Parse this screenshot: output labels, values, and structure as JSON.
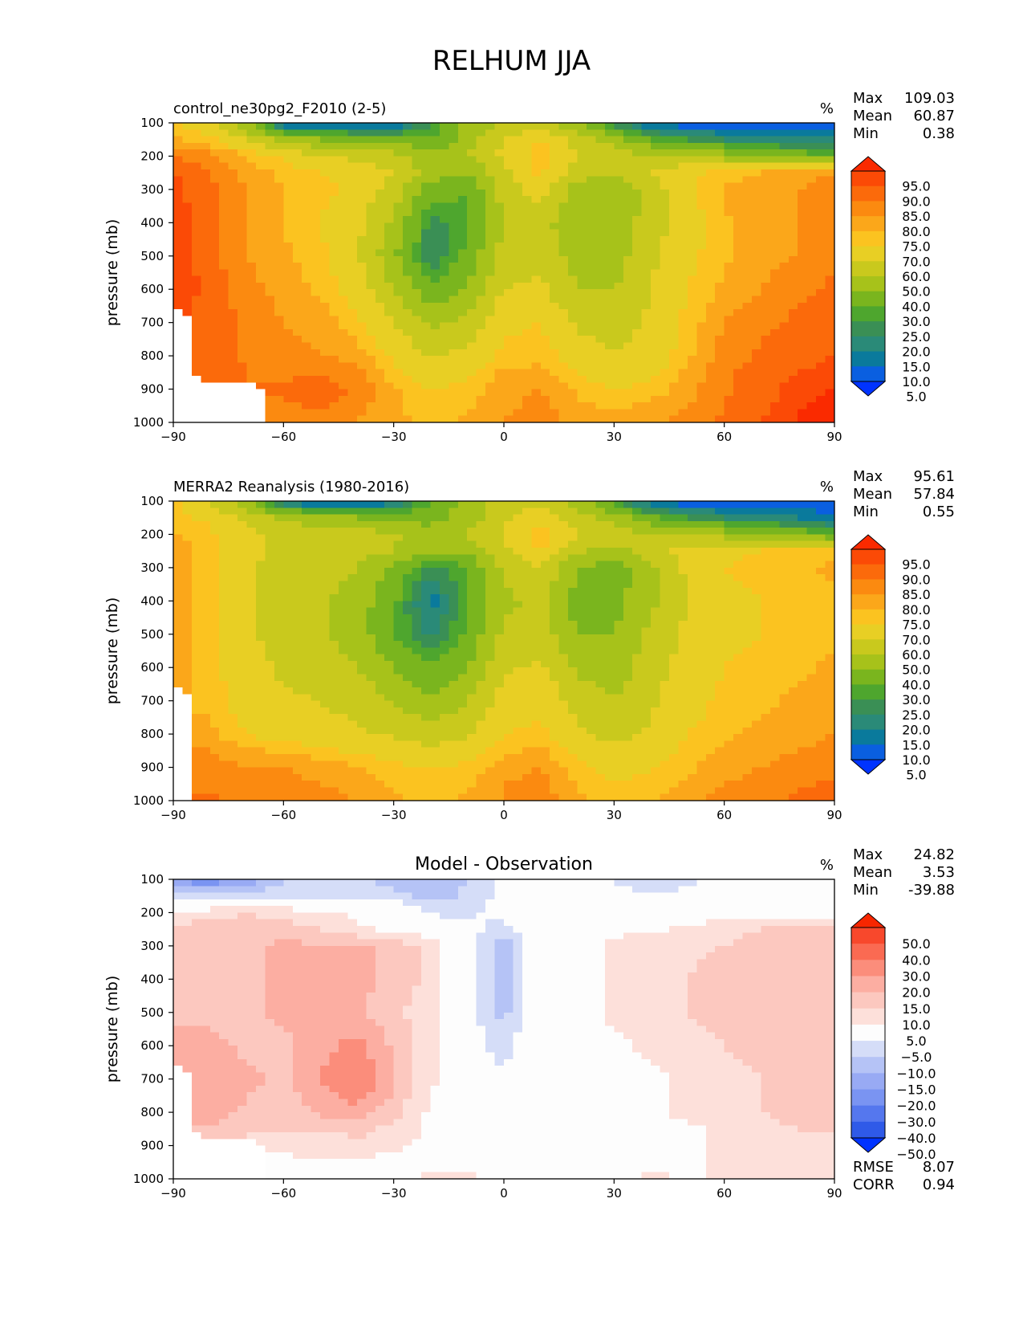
{
  "title": "RELHUM JJA",
  "colors": {
    "rh_levels": [
      5,
      10,
      15,
      20,
      25,
      30,
      40,
      50,
      60,
      70,
      75,
      80,
      85,
      90,
      95
    ],
    "rh_palette": [
      "#0033ff",
      "#0a5fe0",
      "#0a7a9c",
      "#2a8a78",
      "#3a8f55",
      "#4ea62e",
      "#7ab51e",
      "#a7c21a",
      "#c9c91d",
      "#e8cf24",
      "#fbc320",
      "#fba71a",
      "#fb8a10",
      "#fb6a0b",
      "#fb4a06",
      "#fa2a00"
    ],
    "diff_levels": [
      -50,
      -40,
      -30,
      -20,
      -15,
      -10,
      -5,
      5,
      10,
      15,
      20,
      30,
      40,
      50
    ],
    "diff_palette": [
      "#0033ff",
      "#2f5ae8",
      "#5577ee",
      "#7a94f2",
      "#98aaf4",
      "#b5c3f6",
      "#d5ddf8",
      "#fdfdfd",
      "#fde0da",
      "#fcc8bf",
      "#fcaea2",
      "#fb8d7b",
      "#fa6a52",
      "#f8482c",
      "#f72600"
    ]
  },
  "panels": [
    {
      "title": "control_ne30pg2_F2010 (2-5)",
      "units": "%",
      "stats": [
        {
          "label": "Max",
          "value": "109.03"
        },
        {
          "label": "Mean",
          "value": "60.87"
        },
        {
          "label": "Min",
          "value": "0.38"
        }
      ],
      "ylabel": "pressure (mb)",
      "colorbar_labels": [
        "95.0",
        "90.0",
        "85.0",
        "80.0",
        "75.0",
        "70.0",
        "60.0",
        "50.0",
        "40.0",
        "30.0",
        "25.0",
        "20.0",
        "15.0",
        "10.0",
        "5.0"
      ]
    },
    {
      "title": "MERRA2 Reanalysis (1980-2016)",
      "units": "%",
      "stats": [
        {
          "label": "Max",
          "value": "95.61"
        },
        {
          "label": "Mean",
          "value": "57.84"
        },
        {
          "label": "Min",
          "value": "0.55"
        }
      ],
      "ylabel": "pressure (mb)",
      "colorbar_labels": [
        "95.0",
        "90.0",
        "85.0",
        "80.0",
        "75.0",
        "70.0",
        "60.0",
        "50.0",
        "40.0",
        "30.0",
        "25.0",
        "20.0",
        "15.0",
        "10.0",
        "5.0"
      ]
    },
    {
      "title": "Model - Observation",
      "units": "%",
      "stats": [
        {
          "label": "Max",
          "value": "24.82"
        },
        {
          "label": "Mean",
          "value": "3.53"
        },
        {
          "label": "Min",
          "value": "-39.88"
        }
      ],
      "ylabel": "pressure (mb)",
      "colorbar_labels": [
        "50.0",
        "40.0",
        "30.0",
        "20.0",
        "15.0",
        "10.0",
        "5.0",
        "-5.0",
        "-10.0",
        "-15.0",
        "-20.0",
        "-30.0",
        "-40.0",
        "-50.0"
      ],
      "extra_stats": [
        {
          "label": "RMSE",
          "value": "8.07"
        },
        {
          "label": "CORR",
          "value": "0.94"
        }
      ]
    }
  ],
  "chart_data": [
    {
      "type": "heatmap",
      "title": "control_ne30pg2_F2010 (2-5)",
      "units": "%",
      "xlabel": "",
      "ylabel": "pressure (mb)",
      "x_ticks": [
        -90,
        -60,
        -30,
        0,
        30,
        60,
        90
      ],
      "y_ticks": [
        100,
        200,
        300,
        400,
        500,
        600,
        700,
        800,
        900,
        1000
      ],
      "xlim": [
        -90,
        90
      ],
      "ylim": [
        1000,
        100
      ],
      "levels": [
        5,
        10,
        15,
        20,
        25,
        30,
        40,
        50,
        60,
        70,
        75,
        80,
        85,
        90,
        95
      ],
      "stats": {
        "max": 109.03,
        "mean": 60.87,
        "min": 0.38
      },
      "lat": [
        -90,
        -80,
        -70,
        -60,
        -50,
        -40,
        -30,
        -20,
        -10,
        0,
        10,
        20,
        30,
        40,
        50,
        60,
        70,
        80,
        90
      ],
      "plev": [
        100,
        150,
        200,
        250,
        300,
        400,
        500,
        600,
        700,
        800,
        850,
        900,
        950,
        1000
      ],
      "values": [
        [
          70,
          62,
          40,
          8,
          5,
          5,
          8,
          25,
          42,
          52,
          55,
          40,
          20,
          8,
          5,
          5,
          5,
          5,
          5
        ],
        [
          76,
          72,
          60,
          45,
          40,
          38,
          35,
          30,
          44,
          60,
          70,
          55,
          45,
          30,
          25,
          20,
          18,
          15,
          15
        ],
        [
          85,
          82,
          75,
          68,
          62,
          58,
          55,
          45,
          50,
          62,
          75,
          62,
          55,
          52,
          50,
          45,
          40,
          35,
          30
        ],
        [
          90,
          85,
          78,
          74,
          70,
          65,
          60,
          45,
          40,
          58,
          72,
          55,
          50,
          60,
          68,
          72,
          75,
          78,
          80
        ],
        [
          92,
          86,
          80,
          75,
          72,
          68,
          55,
          35,
          30,
          55,
          65,
          45,
          40,
          55,
          68,
          76,
          78,
          80,
          82
        ],
        [
          93,
          86,
          80,
          75,
          70,
          62,
          48,
          22,
          28,
          50,
          55,
          40,
          42,
          55,
          66,
          74,
          78,
          80,
          82
        ],
        [
          94,
          87,
          80,
          76,
          72,
          62,
          42,
          20,
          32,
          55,
          58,
          45,
          45,
          58,
          68,
          74,
          78,
          80,
          84
        ],
        [
          94,
          88,
          82,
          78,
          74,
          66,
          50,
          32,
          40,
          60,
          62,
          50,
          50,
          60,
          70,
          76,
          80,
          84,
          86
        ],
        [
          null,
          88,
          84,
          80,
          78,
          72,
          60,
          48,
          52,
          68,
          70,
          58,
          55,
          62,
          72,
          80,
          84,
          86,
          88
        ],
        [
          null,
          88,
          84,
          82,
          80,
          78,
          68,
          60,
          62,
          72,
          74,
          65,
          60,
          65,
          74,
          82,
          86,
          88,
          90
        ],
        [
          null,
          88,
          85,
          84,
          84,
          82,
          72,
          66,
          68,
          76,
          76,
          70,
          65,
          68,
          76,
          84,
          87,
          90,
          92
        ],
        [
          null,
          null,
          null,
          86,
          88,
          84,
          76,
          70,
          72,
          78,
          80,
          74,
          70,
          72,
          78,
          84,
          88,
          92,
          95
        ],
        [
          null,
          null,
          null,
          84,
          86,
          82,
          76,
          72,
          74,
          78,
          82,
          76,
          74,
          76,
          80,
          85,
          88,
          94,
          97
        ],
        [
          null,
          null,
          null,
          82,
          84,
          80,
          76,
          74,
          76,
          80,
          84,
          78,
          76,
          78,
          82,
          86,
          90,
          96,
          99
        ]
      ]
    },
    {
      "type": "heatmap",
      "title": "MERRA2 Reanalysis (1980-2016)",
      "units": "%",
      "xlabel": "",
      "ylabel": "pressure (mb)",
      "x_ticks": [
        -90,
        -60,
        -30,
        0,
        30,
        60,
        90
      ],
      "y_ticks": [
        100,
        200,
        300,
        400,
        500,
        600,
        700,
        800,
        900,
        1000
      ],
      "xlim": [
        -90,
        90
      ],
      "ylim": [
        1000,
        100
      ],
      "levels": [
        5,
        10,
        15,
        20,
        25,
        30,
        40,
        50,
        60,
        70,
        75,
        80,
        85,
        90,
        95
      ],
      "stats": {
        "max": 95.61,
        "mean": 57.84,
        "min": 0.55
      },
      "lat": [
        -90,
        -80,
        -70,
        -60,
        -50,
        -40,
        -30,
        -20,
        -10,
        0,
        10,
        20,
        30,
        40,
        50,
        60,
        70,
        80,
        90
      ],
      "plev": [
        100,
        150,
        200,
        250,
        300,
        400,
        500,
        600,
        700,
        800,
        850,
        900,
        950,
        1000
      ],
      "values": [
        [
          72,
          60,
          40,
          10,
          5,
          5,
          10,
          30,
          45,
          52,
          55,
          45,
          25,
          10,
          5,
          5,
          5,
          5,
          5
        ],
        [
          72,
          68,
          58,
          48,
          42,
          40,
          38,
          35,
          45,
          58,
          68,
          55,
          45,
          32,
          25,
          20,
          18,
          15,
          12
        ],
        [
          76,
          72,
          62,
          58,
          56,
          54,
          52,
          45,
          50,
          62,
          76,
          62,
          55,
          52,
          50,
          45,
          40,
          35,
          30
        ],
        [
          78,
          72,
          62,
          58,
          56,
          54,
          50,
          40,
          42,
          58,
          70,
          52,
          46,
          56,
          64,
          68,
          70,
          72,
          74
        ],
        [
          78,
          72,
          62,
          56,
          54,
          50,
          38,
          22,
          30,
          52,
          60,
          40,
          34,
          48,
          62,
          70,
          72,
          74,
          76
        ],
        [
          78,
          72,
          62,
          56,
          52,
          45,
          32,
          12,
          28,
          48,
          52,
          36,
          36,
          48,
          60,
          68,
          70,
          72,
          74
        ],
        [
          78,
          72,
          62,
          56,
          52,
          45,
          30,
          18,
          32,
          52,
          55,
          40,
          40,
          52,
          62,
          68,
          70,
          72,
          74
        ],
        [
          80,
          72,
          64,
          58,
          55,
          50,
          40,
          30,
          40,
          58,
          62,
          48,
          44,
          56,
          64,
          70,
          72,
          74,
          76
        ],
        [
          null,
          74,
          66,
          62,
          60,
          56,
          50,
          42,
          50,
          64,
          68,
          56,
          50,
          58,
          66,
          72,
          74,
          76,
          78
        ],
        [
          null,
          76,
          70,
          66,
          64,
          62,
          58,
          54,
          58,
          70,
          72,
          62,
          56,
          62,
          70,
          74,
          76,
          78,
          80
        ],
        [
          null,
          80,
          76,
          74,
          72,
          68,
          66,
          62,
          66,
          74,
          76,
          68,
          62,
          66,
          72,
          76,
          78,
          80,
          82
        ],
        [
          null,
          82,
          80,
          80,
          78,
          76,
          72,
          70,
          72,
          78,
          80,
          72,
          66,
          70,
          74,
          78,
          80,
          82,
          84
        ],
        [
          null,
          84,
          82,
          82,
          80,
          78,
          74,
          72,
          74,
          80,
          82,
          74,
          70,
          72,
          76,
          80,
          82,
          84,
          86
        ],
        [
          null,
          86,
          84,
          84,
          82,
          80,
          76,
          74,
          76,
          80,
          84,
          76,
          72,
          74,
          78,
          82,
          84,
          86,
          88
        ]
      ]
    },
    {
      "type": "heatmap",
      "title": "Model - Observation",
      "units": "%",
      "xlabel": "",
      "ylabel": "pressure (mb)",
      "x_ticks": [
        -90,
        -60,
        -30,
        0,
        30,
        60,
        90
      ],
      "y_ticks": [
        100,
        200,
        300,
        400,
        500,
        600,
        700,
        800,
        900,
        1000
      ],
      "xlim": [
        -90,
        90
      ],
      "ylim": [
        1000,
        100
      ],
      "levels": [
        -50,
        -40,
        -30,
        -20,
        -15,
        -10,
        -5,
        5,
        10,
        15,
        20,
        30,
        40,
        50
      ],
      "stats": {
        "max": 24.82,
        "mean": 3.53,
        "min": -39.88,
        "rmse": 8.07,
        "corr": 0.94
      },
      "lat": [
        -90,
        -80,
        -70,
        -60,
        -50,
        -40,
        -30,
        -20,
        -10,
        0,
        10,
        20,
        30,
        40,
        50,
        60,
        70,
        80,
        90
      ],
      "plev": [
        100,
        150,
        200,
        250,
        300,
        400,
        500,
        600,
        700,
        800,
        850,
        900,
        950,
        1000
      ],
      "values": [
        [
          -22,
          -24,
          -18,
          -10,
          -8,
          -10,
          -12,
          -16,
          -10,
          -4,
          -2,
          -4,
          -6,
          -12,
          -6,
          -4,
          -2,
          -2,
          -2
        ],
        [
          -6,
          -8,
          -8,
          -6,
          -6,
          -6,
          -8,
          -12,
          -9,
          -4,
          -2,
          0,
          -2,
          -4,
          -3,
          -2,
          0,
          0,
          0
        ],
        [
          6,
          8,
          10,
          8,
          6,
          4,
          2,
          -6,
          -6,
          -2,
          0,
          2,
          2,
          2,
          2,
          2,
          2,
          2,
          2
        ],
        [
          12,
          12,
          12,
          12,
          10,
          6,
          4,
          0,
          -3,
          -8,
          2,
          2,
          4,
          4,
          6,
          8,
          10,
          12,
          12
        ],
        [
          14,
          14,
          14,
          16,
          16,
          16,
          14,
          8,
          -2,
          -14,
          2,
          3,
          6,
          8,
          8,
          10,
          12,
          12,
          12
        ],
        [
          14,
          14,
          14,
          16,
          16,
          16,
          14,
          8,
          -2,
          -14,
          2,
          3,
          6,
          8,
          10,
          14,
          12,
          10,
          10
        ],
        [
          14,
          14,
          14,
          16,
          16,
          16,
          12,
          6,
          -2,
          -12,
          2,
          3,
          6,
          8,
          10,
          12,
          14,
          14,
          12
        ],
        [
          16,
          16,
          14,
          14,
          18,
          22,
          14,
          6,
          -2,
          -8,
          2,
          2,
          4,
          6,
          8,
          10,
          12,
          14,
          12
        ],
        [
          null,
          20,
          16,
          14,
          20,
          26,
          16,
          6,
          0,
          -4,
          2,
          2,
          2,
          4,
          6,
          8,
          10,
          12,
          12
        ],
        [
          null,
          18,
          14,
          12,
          16,
          18,
          12,
          4,
          2,
          0,
          2,
          2,
          2,
          4,
          6,
          8,
          10,
          12,
          12
        ],
        [
          null,
          14,
          10,
          10,
          10,
          12,
          8,
          4,
          2,
          0,
          0,
          2,
          2,
          4,
          4,
          6,
          8,
          10,
          10
        ],
        [
          null,
          null,
          null,
          6,
          8,
          8,
          6,
          4,
          2,
          0,
          0,
          2,
          2,
          4,
          4,
          6,
          8,
          8,
          8
        ],
        [
          null,
          null,
          null,
          4,
          4,
          4,
          3,
          4,
          2,
          2,
          2,
          2,
          2,
          4,
          4,
          6,
          6,
          6,
          6
        ],
        [
          null,
          null,
          null,
          3,
          3,
          3,
          3,
          6,
          6,
          4,
          4,
          2,
          4,
          6,
          4,
          6,
          6,
          6,
          6
        ]
      ]
    }
  ]
}
